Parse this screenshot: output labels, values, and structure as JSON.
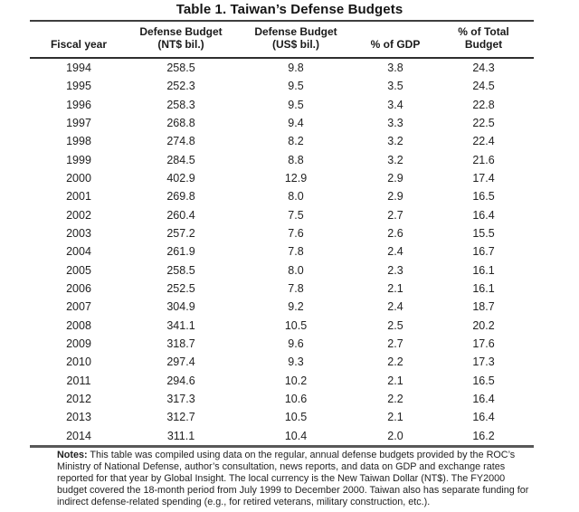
{
  "title": "Table 1. Taiwan’s Defense Budgets",
  "table": {
    "headers": [
      {
        "lines": [
          "Fiscal year"
        ]
      },
      {
        "lines": [
          "Defense Budget",
          "(NT$ bil.)"
        ]
      },
      {
        "lines": [
          "Defense Budget",
          "(US$ bil.)"
        ]
      },
      {
        "lines": [
          "% of GDP"
        ]
      },
      {
        "lines": [
          "% of Total",
          "Budget"
        ]
      }
    ],
    "rows": [
      [
        "1994",
        "258.5",
        "9.8",
        "3.8",
        "24.3"
      ],
      [
        "1995",
        "252.3",
        "9.5",
        "3.5",
        "24.5"
      ],
      [
        "1996",
        "258.3",
        "9.5",
        "3.4",
        "22.8"
      ],
      [
        "1997",
        "268.8",
        "9.4",
        "3.3",
        "22.5"
      ],
      [
        "1998",
        "274.8",
        "8.2",
        "3.2",
        "22.4"
      ],
      [
        "1999",
        "284.5",
        "8.8",
        "3.2",
        "21.6"
      ],
      [
        "2000",
        "402.9",
        "12.9",
        "2.9",
        "17.4"
      ],
      [
        "2001",
        "269.8",
        "8.0",
        "2.9",
        "16.5"
      ],
      [
        "2002",
        "260.4",
        "7.5",
        "2.7",
        "16.4"
      ],
      [
        "2003",
        "257.2",
        "7.6",
        "2.6",
        "15.5"
      ],
      [
        "2004",
        "261.9",
        "7.8",
        "2.4",
        "16.7"
      ],
      [
        "2005",
        "258.5",
        "8.0",
        "2.3",
        "16.1"
      ],
      [
        "2006",
        "252.5",
        "7.8",
        "2.1",
        "16.1"
      ],
      [
        "2007",
        "304.9",
        "9.2",
        "2.4",
        "18.7"
      ],
      [
        "2008",
        "341.1",
        "10.5",
        "2.5",
        "20.2"
      ],
      [
        "2009",
        "318.7",
        "9.6",
        "2.7",
        "17.6"
      ],
      [
        "2010",
        "297.4",
        "9.3",
        "2.2",
        "17.3"
      ],
      [
        "2011",
        "294.6",
        "10.2",
        "2.1",
        "16.5"
      ],
      [
        "2012",
        "317.3",
        "10.6",
        "2.2",
        "16.4"
      ],
      [
        "2013",
        "312.7",
        "10.5",
        "2.1",
        "16.4"
      ],
      [
        "2014",
        "311.1",
        "10.4",
        "2.0",
        "16.2"
      ]
    ]
  },
  "notes": {
    "label": "Notes:",
    "lines": [
      "This table was compiled using data on the regular, annual defense budgets provided by the ROC’s",
      "Ministry of National Defense, author’s consultation, news reports, and data on GDP and exchange rates",
      "reported for that year by Global Insight. The local currency is the New Taiwan Dollar (NT$). The FY2000",
      "budget covered the 18-month period from July 1999 to December 2000. Taiwan also has separate funding for",
      "indirect defense-related spending (e.g., for retired veterans, military construction, etc.)."
    ]
  },
  "colors": {
    "text": "#1c1c1c",
    "rule_top": "#3e3e3e",
    "rule_header": "#2e2e2e",
    "rule_bottom": "#585858",
    "background": "#ffffff"
  }
}
